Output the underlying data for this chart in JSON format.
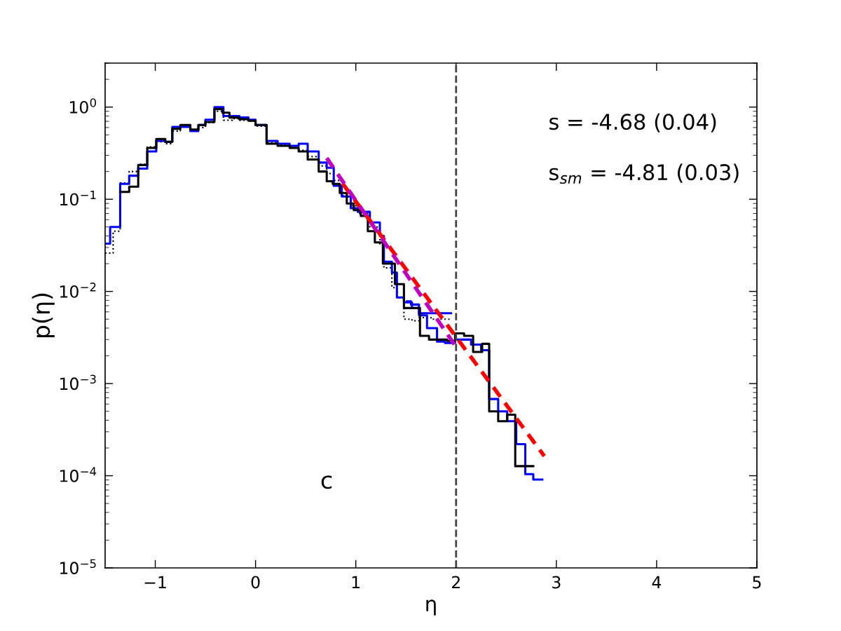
{
  "chart_data": {
    "type": "step",
    "xlabel": "η",
    "ylabel": "p(η)",
    "log": "y",
    "xlim": [
      -1.5,
      5
    ],
    "xticks": [
      {
        "value": -1,
        "label": "−1"
      },
      0,
      1,
      2,
      3,
      4,
      5
    ],
    "ylim": [
      1e-05,
      3
    ],
    "yticks": [
      {
        "value": 1e-05,
        "label": "10$^{−5}$"
      },
      {
        "value": 0.0001,
        "label": "10$^{−4}$"
      },
      {
        "value": 0.001,
        "label": "10$^{−3}$"
      },
      {
        "value": 0.01,
        "label": "10$^{−2}$"
      },
      {
        "value": 0.1,
        "label": "10$^{−1}$"
      },
      {
        "value": 1,
        "label": "10$^{0}$"
      }
    ],
    "marker": "none",
    "series": [
      {
        "color": "#000000",
        "line_style": "dotted",
        "x": [
          -1.5,
          -1.42,
          -1.35,
          -1.26,
          -1.17,
          -1.08,
          -0.99,
          -0.9,
          -0.83,
          -0.75,
          -0.65,
          -0.57,
          -0.5,
          -0.41,
          -0.32,
          -0.23,
          -0.16,
          -0.07,
          0.0,
          0.11,
          0.22,
          0.34,
          0.43,
          0.52,
          0.63,
          0.71,
          0.78,
          0.86,
          0.95,
          1.02,
          1.14,
          1.24,
          1.28,
          1.36,
          1.41,
          1.48,
          1.56,
          1.63,
          1.75,
          1.95
        ],
        "values": [
          0.026,
          0.045,
          0.15,
          0.2,
          0.24,
          0.37,
          0.42,
          0.4,
          0.55,
          0.62,
          0.55,
          0.6,
          0.68,
          0.9,
          0.72,
          0.75,
          0.72,
          0.7,
          0.62,
          0.41,
          0.39,
          0.37,
          0.34,
          0.29,
          0.23,
          0.19,
          0.16,
          0.11,
          0.085,
          0.07,
          0.05,
          0.032,
          0.018,
          0.011,
          0.0085,
          0.005,
          0.0048,
          0.0052,
          0.005,
          0.005
        ]
      },
      {
        "color": "#0000ff",
        "line_style": "solid",
        "x": [
          -1.5,
          -1.45,
          -1.35,
          -1.26,
          -1.17,
          -1.08,
          -0.99,
          -0.9,
          -0.83,
          -0.75,
          -0.65,
          -0.57,
          -0.5,
          -0.41,
          -0.32,
          -0.23,
          -0.16,
          -0.07,
          0.0,
          0.11,
          0.22,
          0.34,
          0.43,
          0.52,
          0.63,
          0.71,
          0.78,
          0.86,
          0.95,
          1.02,
          1.14,
          1.24,
          1.28,
          1.36,
          1.41,
          1.48,
          1.56,
          1.63,
          1.95
        ],
        "values": [
          0.033,
          0.05,
          0.147,
          0.18,
          0.215,
          0.33,
          0.43,
          0.42,
          0.61,
          0.61,
          0.55,
          0.64,
          0.73,
          1.0,
          0.8,
          0.8,
          0.77,
          0.73,
          0.64,
          0.43,
          0.4,
          0.38,
          0.4,
          0.33,
          0.25,
          0.22,
          0.14,
          0.107,
          0.08,
          0.073,
          0.056,
          0.04,
          0.021,
          0.016,
          0.0086,
          0.0076,
          0.0066,
          0.0058,
          0.0058
        ]
      },
      {
        "color": "#0000ff",
        "line_style": "solid",
        "x": [
          1.51,
          1.55,
          1.63,
          1.71,
          1.81,
          1.89,
          1.99,
          2.15,
          2.25,
          2.33,
          2.42,
          2.51,
          2.6,
          2.69,
          2.77,
          2.86
        ],
        "values": [
          0.0078,
          0.0072,
          0.0055,
          0.004,
          0.00285,
          0.00275,
          0.003,
          0.00265,
          0.0023,
          0.00068,
          0.0005,
          0.00039,
          0.00022,
          0.000104,
          9.1e-05,
          9.1e-05
        ]
      },
      {
        "color": "#000000",
        "line_style": "solid",
        "x": [
          -1.35,
          -1.26,
          -1.17,
          -1.08,
          -0.99,
          -0.9,
          -0.83,
          -0.75,
          -0.65,
          -0.57,
          -0.5,
          -0.41,
          -0.33,
          -0.26,
          -0.16,
          -0.07,
          0.0,
          0.11,
          0.22,
          0.34,
          0.43,
          0.52,
          0.63,
          0.71,
          0.77,
          0.84,
          0.91,
          0.98,
          1.05,
          1.12,
          1.19,
          1.27,
          1.31,
          1.39,
          1.48,
          1.57,
          1.64,
          1.73,
          1.82,
          1.91,
          1.99,
          2.08,
          2.17,
          2.26,
          2.33,
          2.42,
          2.51,
          2.59,
          2.77
        ],
        "values": [
          0.12,
          0.137,
          0.235,
          0.36,
          0.45,
          0.42,
          0.58,
          0.64,
          0.57,
          0.64,
          0.69,
          0.95,
          0.87,
          0.77,
          0.74,
          0.71,
          0.64,
          0.4,
          0.38,
          0.36,
          0.33,
          0.27,
          0.2,
          0.157,
          0.147,
          0.117,
          0.09,
          0.076,
          0.066,
          0.045,
          0.034,
          0.02,
          0.02,
          0.012,
          0.0066,
          0.0066,
          0.0033,
          0.003,
          0.003,
          0.0029,
          0.0035,
          0.0033,
          0.0022,
          0.0027,
          0.0005,
          0.00039,
          0.00046,
          0.000127,
          0.000127
        ]
      },
      {
        "type": "line",
        "color": "#ff0000",
        "line_style": "dashed",
        "x": [
          0.87,
          2.88
        ],
        "values": [
          0.147,
          0.000163
        ]
      },
      {
        "type": "line",
        "color": "#bf00bf",
        "line_style": "dashed",
        "x": [
          0.71,
          2.0
        ],
        "values": [
          0.28,
          0.0025
        ]
      }
    ],
    "ref_lines": [
      {
        "axis": "x",
        "value": 2,
        "color": "#444444",
        "line_style": "dashed"
      }
    ],
    "annotations": [
      "s = -4.68 (0.04)",
      "s$_{sm}$ = -4.81 (0.03)",
      "c"
    ]
  }
}
